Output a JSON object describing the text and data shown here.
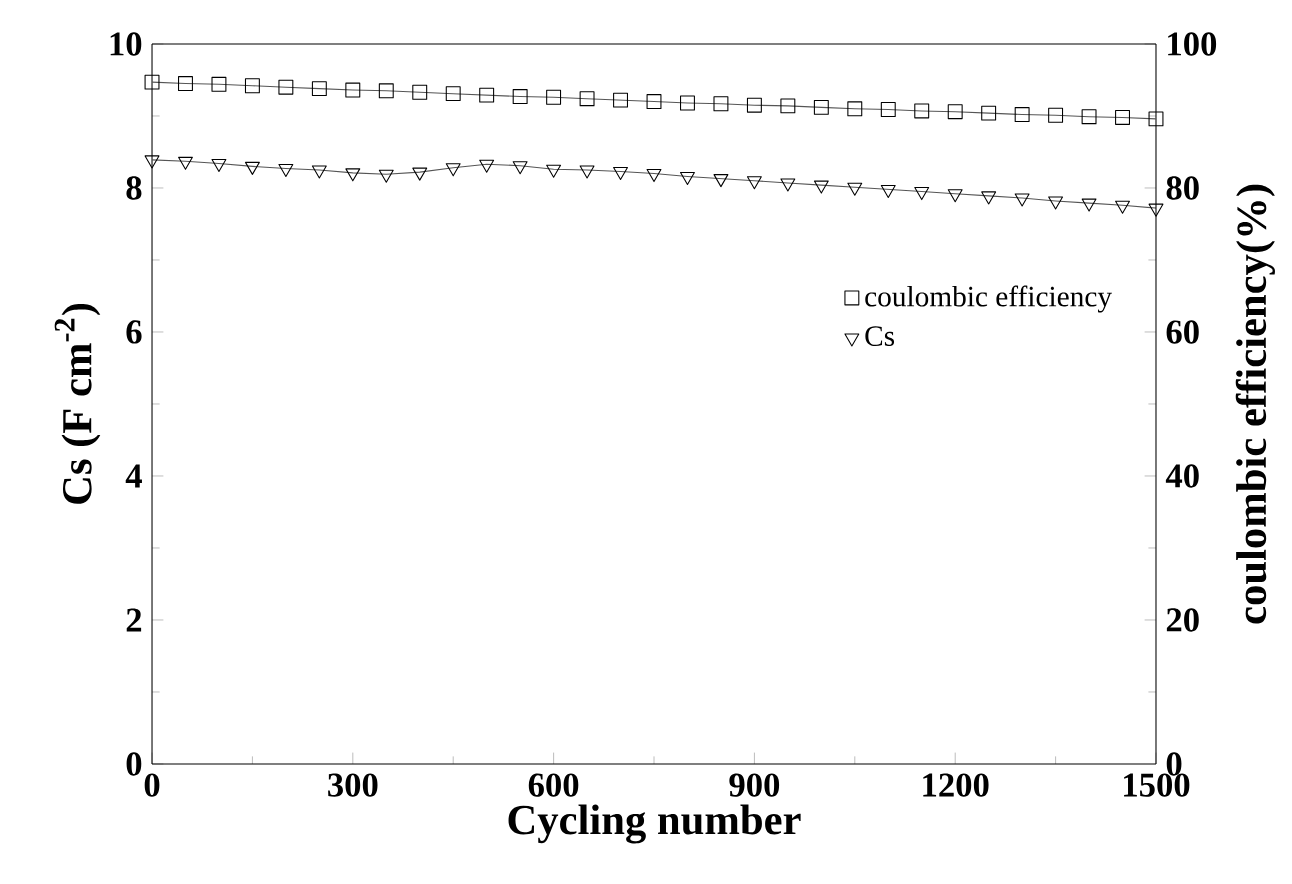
{
  "chart_data": {
    "type": "line",
    "xlabel": "Cycling number",
    "ylabel": "Cs (F cm$^{-2}$)",
    "y2label": "coulombic efficiency(%)",
    "x": [
      0,
      50,
      100,
      150,
      200,
      250,
      300,
      350,
      400,
      450,
      500,
      550,
      600,
      650,
      700,
      750,
      800,
      850,
      900,
      950,
      1000,
      1050,
      1100,
      1150,
      1200,
      1250,
      1300,
      1350,
      1400,
      1450,
      1500
    ],
    "series": [
      {
        "name": "coulombic efficiency",
        "color": "#555555",
        "axis": "y2",
        "marker": "square",
        "values": [
          94.7,
          94.5,
          94.4,
          94.2,
          94.0,
          93.8,
          93.6,
          93.5,
          93.3,
          93.1,
          92.9,
          92.7,
          92.6,
          92.4,
          92.2,
          92.0,
          91.8,
          91.7,
          91.5,
          91.4,
          91.2,
          91.0,
          90.9,
          90.7,
          90.6,
          90.4,
          90.2,
          90.1,
          89.9,
          89.8,
          89.6
        ]
      },
      {
        "name": "Cs",
        "color": "#555555",
        "axis": "y",
        "marker": "triangle",
        "values": [
          8.39,
          8.37,
          8.34,
          8.3,
          8.27,
          8.25,
          8.21,
          8.19,
          8.22,
          8.28,
          8.33,
          8.31,
          8.26,
          8.25,
          8.23,
          8.2,
          8.16,
          8.13,
          8.1,
          8.07,
          8.04,
          8.01,
          7.98,
          7.95,
          7.92,
          7.89,
          7.86,
          7.82,
          7.79,
          7.76,
          7.72
        ]
      }
    ],
    "xlim": [
      0,
      1500
    ],
    "xticks": [
      0,
      300,
      600,
      900,
      1200,
      1500
    ],
    "ylim": [
      0,
      10
    ],
    "yticks": [
      0,
      2,
      4,
      6,
      8,
      10
    ],
    "y2lim": [
      0,
      100
    ],
    "y2ticks": [
      0,
      20,
      40,
      60,
      80,
      100
    ],
    "legend": "right",
    "grid": false,
    "line_style": "solid"
  }
}
